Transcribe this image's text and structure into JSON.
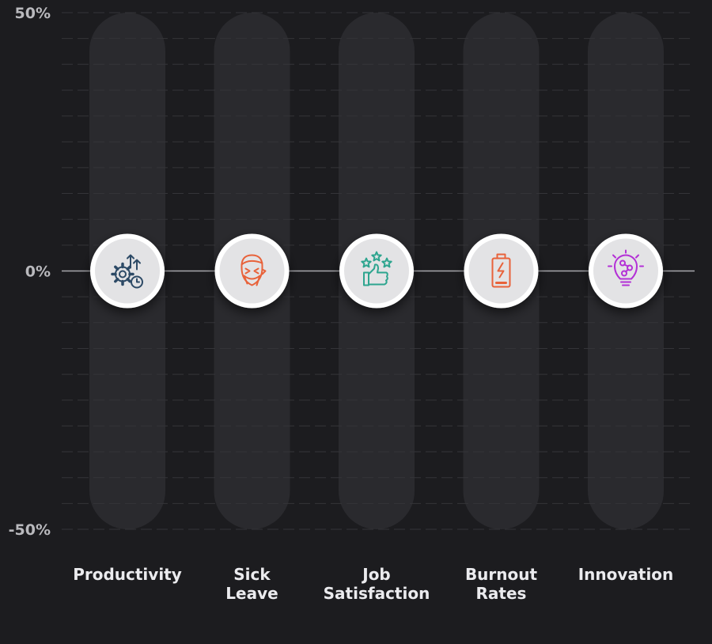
{
  "chart_data": {
    "type": "bar",
    "title": "",
    "xlabel": "",
    "ylabel": "",
    "categories": [
      "Productivity",
      "Sick Leave",
      "Job Satisfaction",
      "Burnout Rates",
      "Innovation"
    ],
    "category_lines": [
      [
        "Productivity"
      ],
      [
        "Sick",
        "Leave"
      ],
      [
        "Job",
        "Satisfaction"
      ],
      [
        "Burnout",
        "Rates"
      ],
      [
        "Innovation"
      ]
    ],
    "values": [
      0,
      0,
      0,
      0,
      0
    ],
    "ylim": [
      -50,
      50
    ],
    "yticks": [
      50,
      0,
      -50
    ],
    "ytick_labels": [
      "50%",
      "0%",
      "-50%"
    ],
    "grid": true,
    "legend": "none",
    "icons": [
      {
        "name": "productivity-gear-clock-icon",
        "color": "#2d4a66"
      },
      {
        "name": "sick-face-icon",
        "color": "#e8623a"
      },
      {
        "name": "thumbs-up-stars-icon",
        "color": "#2ea58f"
      },
      {
        "name": "low-battery-icon",
        "color": "#e8623a"
      },
      {
        "name": "lightbulb-icon",
        "color": "#b330d6"
      }
    ],
    "colors": {
      "background": "#1c1c1f",
      "track": "#2a2a2e",
      "grid": "#343438",
      "zero_line": "#a8a8ad",
      "marker_fill": "#e3e3e5",
      "marker_ring": "#ffffff"
    }
  }
}
